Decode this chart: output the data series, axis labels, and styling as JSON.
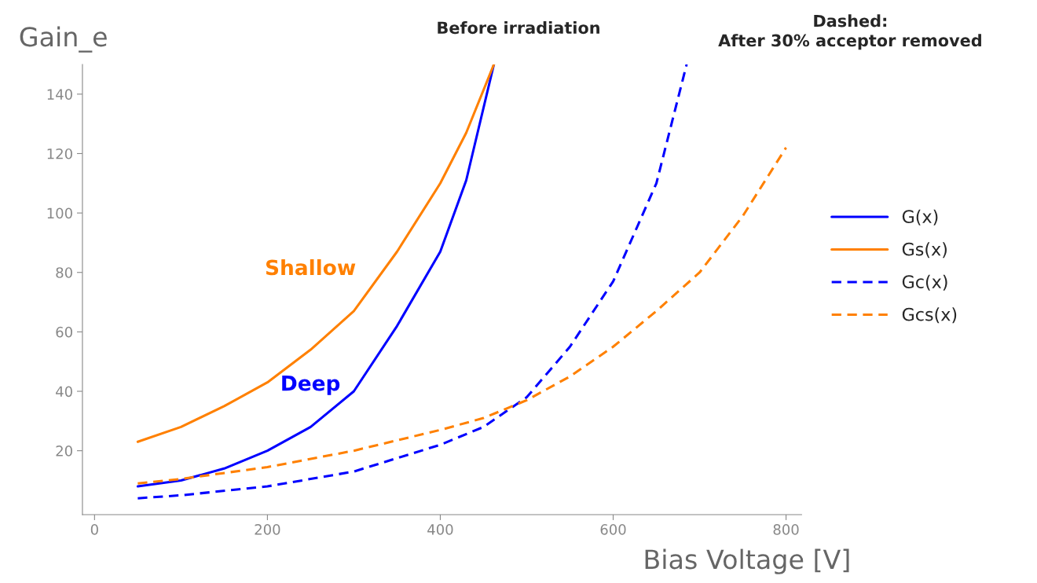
{
  "chart_data": {
    "type": "line",
    "title": "Before irradiation",
    "xlabel": "Bias Voltage [V]",
    "ylabel": "Gain_e",
    "xlim": [
      -14,
      818
    ],
    "ylim": [
      -1.5,
      150
    ],
    "xticks": [
      0,
      200,
      400,
      600,
      800
    ],
    "yticks": [
      20,
      40,
      60,
      80,
      100,
      120,
      140
    ],
    "legend": "right",
    "grid": false,
    "annotations": [
      "Dashed:\nAfter 30% acceptor removed",
      "Shallow",
      "Deep"
    ],
    "series": [
      {
        "name": "G(x)",
        "color": "#0000ff",
        "line_style": "solid",
        "x": [
          50,
          100,
          150,
          200,
          250,
          300,
          350,
          400,
          430,
          462
        ],
        "values": [
          8,
          10,
          14,
          20,
          28,
          40,
          62,
          87,
          111,
          150
        ]
      },
      {
        "name": "Gs(x)",
        "color": "#ff8000",
        "line_style": "solid",
        "x": [
          50,
          100,
          150,
          200,
          250,
          300,
          350,
          400,
          430,
          462
        ],
        "values": [
          23,
          28,
          35,
          43,
          54,
          67,
          87,
          110,
          127,
          150
        ]
      },
      {
        "name": "Gc(x)",
        "color": "#0000ff",
        "line_style": "dashed",
        "x": [
          50,
          100,
          200,
          300,
          400,
          450,
          500,
          550,
          600,
          650,
          685
        ],
        "values": [
          4,
          5,
          8,
          13,
          22,
          28,
          38,
          55,
          77,
          110,
          150
        ]
      },
      {
        "name": "Gcs(x)",
        "color": "#ff8000",
        "line_style": "dashed",
        "x": [
          50,
          100,
          200,
          300,
          400,
          450,
          500,
          550,
          600,
          650,
          700,
          750,
          800
        ],
        "values": [
          9,
          10.5,
          14.5,
          20,
          27,
          31,
          37,
          45,
          55,
          67,
          80,
          99,
          122
        ]
      }
    ]
  }
}
